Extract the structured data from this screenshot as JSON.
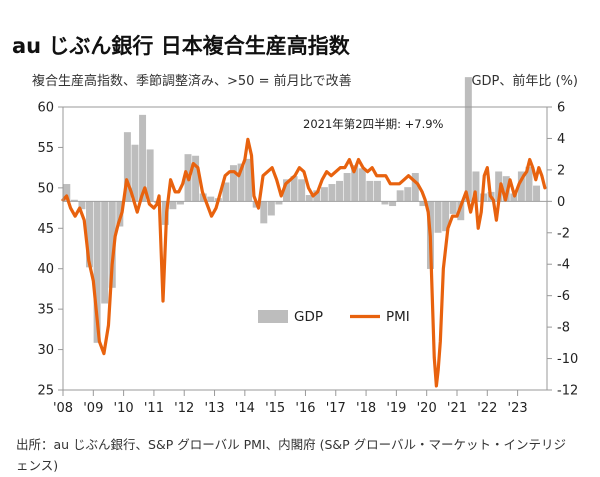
{
  "title": "au じぶん銀行 日本複合生産高指数",
  "subtitle_left": "複合生産高指数、季節調整済み、>50 = 前月比で改善",
  "subtitle_right": "GDP、前年比 (%)",
  "source_text": "出所：au じぶん銀行、S&P グローバル PMI、内閣府 (S&P グローバル・マーケット・インテリジェンス)",
  "chart_data": {
    "type": "bar+line",
    "annotation": "2021年第2四半期: +7.9%",
    "x_tick_labels": [
      "'08",
      "'09",
      "'10",
      "'11",
      "'12",
      "'13",
      "'14",
      "'15",
      "'16",
      "'17",
      "'18",
      "'19",
      "'20",
      "'21",
      "'22",
      "'23"
    ],
    "x_range": [
      2008.0,
      2023.97
    ],
    "y_left": {
      "range": [
        25,
        60
      ],
      "ticks": [
        25,
        30,
        35,
        40,
        45,
        50,
        55,
        60
      ]
    },
    "y_right": {
      "range": [
        -12,
        6
      ],
      "ticks": [
        -12,
        -10,
        -8,
        -6,
        -4,
        -2,
        0,
        2,
        4,
        6
      ]
    },
    "legend": [
      "GDP",
      "PMI"
    ],
    "colors": {
      "gdp": "#bdbdbd",
      "pmi": "#e8620e",
      "axis": "#999999"
    },
    "gdp_series": {
      "name": "GDP",
      "x": [
        2008.125,
        2008.375,
        2008.625,
        2008.875,
        2009.125,
        2009.375,
        2009.625,
        2009.875,
        2010.125,
        2010.375,
        2010.625,
        2010.875,
        2011.125,
        2011.375,
        2011.625,
        2011.875,
        2012.125,
        2012.375,
        2012.625,
        2012.875,
        2013.125,
        2013.375,
        2013.625,
        2013.875,
        2014.125,
        2014.375,
        2014.625,
        2014.875,
        2015.125,
        2015.375,
        2015.625,
        2015.875,
        2016.125,
        2016.375,
        2016.625,
        2016.875,
        2017.125,
        2017.375,
        2017.625,
        2017.875,
        2018.125,
        2018.375,
        2018.625,
        2018.875,
        2019.125,
        2019.375,
        2019.625,
        2019.875,
        2020.125,
        2020.375,
        2020.625,
        2020.875,
        2021.125,
        2021.375,
        2021.625,
        2021.875,
        2022.125,
        2022.375,
        2022.625,
        2022.875,
        2023.125,
        2023.375,
        2023.625
      ],
      "values": [
        1.1,
        0.1,
        -0.5,
        -4.2,
        -9.0,
        -6.5,
        -5.5,
        -1.6,
        4.4,
        3.6,
        5.5,
        3.3,
        -0.1,
        -1.5,
        -0.5,
        -0.2,
        3.0,
        2.9,
        0.5,
        0.3,
        0.2,
        1.2,
        2.3,
        2.4,
        2.7,
        -0.4,
        -1.4,
        -0.9,
        -0.2,
        1.4,
        1.6,
        1.4,
        0.4,
        0.7,
        0.9,
        1.1,
        1.3,
        1.8,
        2.3,
        2.1,
        1.3,
        1.3,
        -0.2,
        -0.3,
        0.7,
        0.9,
        1.8,
        -0.3,
        -4.3,
        -2.0,
        -1.9,
        -0.8,
        -1.2,
        7.9,
        1.9,
        0.5,
        0.6,
        1.9,
        1.6,
        0.5,
        1.9,
        2.2,
        1.0
      ]
    },
    "pmi_series": {
      "name": "PMI",
      "x": [
        2008.0,
        2008.12,
        2008.25,
        2008.4,
        2008.55,
        2008.7,
        2008.85,
        2009.0,
        2009.08,
        2009.2,
        2009.35,
        2009.5,
        2009.62,
        2009.72,
        2009.82,
        2009.95,
        2010.1,
        2010.25,
        2010.45,
        2010.6,
        2010.7,
        2010.85,
        2011.0,
        2011.1,
        2011.17,
        2011.22,
        2011.3,
        2011.42,
        2011.55,
        2011.7,
        2011.82,
        2011.95,
        2012.05,
        2012.15,
        2012.3,
        2012.45,
        2012.6,
        2012.75,
        2012.9,
        2013.05,
        2013.2,
        2013.35,
        2013.5,
        2013.65,
        2013.8,
        2013.9,
        2014.0,
        2014.1,
        2014.22,
        2014.3,
        2014.45,
        2014.6,
        2014.75,
        2014.9,
        2015.05,
        2015.2,
        2015.35,
        2015.5,
        2015.65,
        2015.8,
        2015.95,
        2016.1,
        2016.25,
        2016.4,
        2016.55,
        2016.7,
        2016.85,
        2017.0,
        2017.15,
        2017.3,
        2017.45,
        2017.6,
        2017.75,
        2017.9,
        2018.05,
        2018.2,
        2018.35,
        2018.5,
        2018.65,
        2018.8,
        2018.95,
        2019.1,
        2019.25,
        2019.4,
        2019.55,
        2019.7,
        2019.85,
        2019.95,
        2020.05,
        2020.12,
        2020.18,
        2020.25,
        2020.32,
        2020.38,
        2020.45,
        2020.55,
        2020.7,
        2020.85,
        2021.0,
        2021.15,
        2021.3,
        2021.45,
        2021.6,
        2021.7,
        2021.8,
        2021.9,
        2022.0,
        2022.1,
        2022.2,
        2022.3,
        2022.45,
        2022.6,
        2022.75,
        2022.9,
        2023.05,
        2023.2,
        2023.3,
        2023.4,
        2023.5,
        2023.6,
        2023.7,
        2023.8,
        2023.9
      ],
      "values": [
        48.5,
        49.0,
        47.5,
        46.5,
        47.5,
        46.0,
        41.0,
        38.5,
        35.5,
        31.0,
        29.5,
        33.0,
        40.5,
        44.0,
        45.5,
        47.0,
        51.0,
        49.5,
        47.0,
        49.0,
        50.0,
        48.0,
        47.5,
        48.0,
        49.0,
        44.0,
        36.0,
        47.0,
        51.0,
        49.5,
        49.5,
        50.5,
        52.0,
        51.0,
        53.0,
        52.5,
        49.5,
        48.0,
        46.5,
        47.5,
        49.5,
        51.5,
        52.0,
        52.0,
        51.5,
        52.5,
        53.5,
        56.0,
        54.0,
        49.0,
        47.5,
        51.5,
        52.0,
        52.5,
        51.0,
        49.0,
        50.5,
        51.0,
        51.5,
        52.5,
        52.0,
        50.0,
        49.0,
        49.5,
        51.0,
        52.0,
        51.5,
        52.0,
        52.5,
        52.5,
        53.5,
        52.0,
        53.5,
        52.5,
        52.0,
        52.5,
        51.5,
        51.5,
        51.5,
        50.5,
        50.5,
        50.5,
        51.0,
        51.5,
        51.0,
        50.5,
        49.5,
        48.5,
        47.0,
        44.0,
        37.0,
        29.0,
        25.5,
        27.5,
        31.0,
        40.0,
        45.0,
        46.5,
        46.5,
        48.0,
        49.5,
        47.0,
        49.5,
        45.0,
        47.0,
        51.5,
        52.5,
        49.0,
        48.5,
        46.0,
        50.5,
        48.5,
        51.0,
        49.0,
        50.5,
        51.5,
        52.0,
        53.5,
        52.5,
        51.0,
        52.5,
        51.5,
        50.0
      ]
    }
  }
}
